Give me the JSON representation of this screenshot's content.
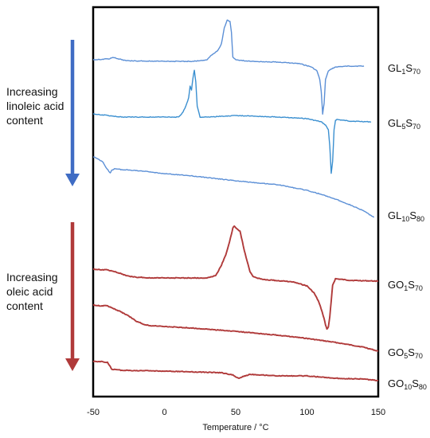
{
  "chart_data": {
    "type": "line",
    "title": "",
    "xlabel": "Temperature / °C",
    "ylabel": "",
    "xlim": [
      -50,
      150
    ],
    "xticks": [
      "-50",
      "0",
      "50",
      "100",
      "150"
    ],
    "grid": false,
    "legend": "none",
    "annotations": [
      {
        "lines": [
          "Increasing",
          "linoleic acid",
          "content"
        ],
        "color": "#3f6cc4"
      },
      {
        "lines": [
          "Increasing",
          "oleic acid",
          "content"
        ],
        "color": "#b03a3a"
      }
    ],
    "series": [
      {
        "name": "GL1S70",
        "label_parts": [
          [
            "GL",
            ""
          ],
          [
            "1",
            "sub"
          ],
          [
            "S",
            ""
          ],
          [
            "70",
            "sub"
          ]
        ],
        "color": "#5b8fd6",
        "baseline": 75,
        "x": [
          -50,
          -39,
          -36,
          -30,
          -25,
          -20,
          0,
          20,
          30,
          33,
          35,
          38,
          40,
          42,
          44,
          46,
          47,
          48,
          50,
          60,
          80,
          95,
          103,
          107,
          109,
          110,
          111,
          112,
          113,
          115,
          120,
          130,
          140
        ],
        "y_off": [
          0,
          -1,
          -3,
          0,
          1.5,
          1.5,
          2,
          2,
          0,
          -6,
          -8,
          -13,
          -20,
          -40,
          -50,
          -48,
          -35,
          -3,
          0,
          2,
          3,
          5,
          9,
          14,
          25,
          40,
          68,
          55,
          25,
          14,
          9,
          8,
          8
        ]
      },
      {
        "name": "GL5S70",
        "label_parts": [
          [
            "GL",
            ""
          ],
          [
            "5",
            "sub"
          ],
          [
            "S",
            ""
          ],
          [
            "70",
            "sub"
          ]
        ],
        "color": "#3a8fd0",
        "baseline": 143,
        "x": [
          -50,
          -35,
          -30,
          0,
          10,
          13,
          15,
          17,
          18,
          19,
          20,
          21,
          22,
          23,
          25,
          30,
          50,
          80,
          100,
          110,
          113,
          115,
          116,
          117,
          118,
          119,
          120,
          121,
          125,
          130,
          145
        ],
        "y_off": [
          0,
          3,
          4,
          4,
          4,
          -2,
          -10,
          -20,
          -35,
          -30,
          -45,
          -55,
          -40,
          -10,
          4,
          4,
          2,
          4,
          6,
          10,
          14,
          20,
          40,
          75,
          60,
          20,
          8,
          7,
          8,
          9,
          10
        ]
      },
      {
        "name": "GL10S80",
        "label_parts": [
          [
            "GL",
            ""
          ],
          [
            "10",
            "sub"
          ],
          [
            "S",
            ""
          ],
          [
            "80",
            "sub"
          ]
        ],
        "color": "#5b8fd6",
        "baseline": 197,
        "x": [
          -50,
          -47,
          -43,
          -41,
          -39,
          -38,
          -37,
          -35,
          -30,
          -20,
          0,
          20,
          50,
          80,
          100,
          110,
          120,
          130,
          140,
          147
        ],
        "y_off": [
          0,
          2,
          7,
          13,
          18,
          20,
          17,
          15,
          16,
          17,
          21,
          24,
          30,
          35,
          42,
          47,
          53,
          60,
          68,
          76
        ]
      },
      {
        "name": "GO1S70",
        "label_parts": [
          [
            "GO",
            ""
          ],
          [
            "1",
            "sub"
          ],
          [
            "S",
            ""
          ],
          [
            "70",
            "sub"
          ]
        ],
        "color": "#b03a3a",
        "baseline": 338,
        "x": [
          -50,
          -40,
          -35,
          -30,
          -25,
          -20,
          -10,
          30,
          36,
          40,
          43,
          45,
          47,
          48,
          49,
          50,
          52,
          53,
          54,
          56,
          58,
          60,
          62,
          65,
          70,
          90,
          100,
          105,
          108,
          110,
          112,
          113,
          114,
          115,
          116,
          117,
          118,
          120,
          125,
          130,
          150
        ],
        "y_off": [
          0,
          1,
          3,
          6,
          9,
          10,
          11,
          11,
          8,
          -5,
          -18,
          -30,
          -44,
          -52,
          -54,
          -52,
          -49,
          -48,
          -40,
          -24,
          -10,
          3,
          9,
          11,
          13,
          16,
          21,
          30,
          40,
          50,
          62,
          70,
          75,
          73,
          60,
          40,
          20,
          12,
          13,
          14,
          15
        ]
      },
      {
        "name": "GO5S70",
        "label_parts": [
          [
            "GO",
            ""
          ],
          [
            "5",
            "sub"
          ],
          [
            "S",
            ""
          ],
          [
            "70",
            "sub"
          ]
        ],
        "color": "#b03a3a",
        "baseline": 383,
        "x": [
          -50,
          -45,
          -40,
          -35,
          -30,
          -25,
          -20,
          -15,
          -10,
          0,
          20,
          50,
          80,
          100,
          120,
          140,
          150
        ],
        "y_off": [
          0,
          1,
          1,
          5,
          9,
          14,
          20,
          24,
          26,
          27,
          29,
          33,
          38,
          42,
          47,
          53,
          58
        ]
      },
      {
        "name": "GO10S80",
        "label_parts": [
          [
            "GO",
            ""
          ],
          [
            "10",
            "sub"
          ],
          [
            "S",
            ""
          ],
          [
            "80",
            "sub"
          ]
        ],
        "color": "#b03a3a",
        "baseline": 454,
        "x": [
          -50,
          -45,
          -40,
          -38,
          -37,
          -35,
          -30,
          0,
          20,
          40,
          48,
          50,
          52,
          55,
          60,
          80,
          100,
          120,
          140,
          150
        ],
        "y_off": [
          0,
          0,
          1,
          6,
          10,
          10,
          11,
          12,
          13,
          14,
          17,
          19,
          21,
          19,
          16,
          18,
          18,
          21,
          22,
          24
        ]
      }
    ]
  }
}
